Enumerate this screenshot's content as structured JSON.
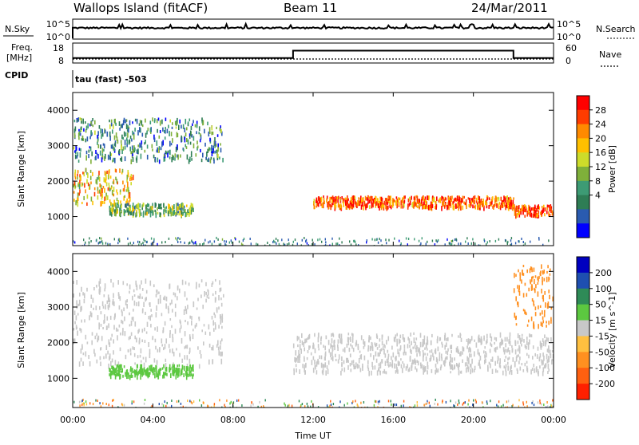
{
  "header": {
    "station": "Wallops Island (fitACF)",
    "beam": "Beam 11",
    "date": "24/Mar/2011"
  },
  "panels": {
    "nsky_label": "N.Sky",
    "nsearch_label": "N.Search",
    "freq_label_line1": "Freq.",
    "freq_label_line2": "[MHz]",
    "nave_label": "Nave",
    "cpid_label": "CPID",
    "cpid_text": "tau (fast) -503",
    "nsky_ticks": [
      "10^5",
      "10^0"
    ],
    "freq_ticks": [
      "18",
      "8"
    ],
    "nave_ticks": [
      "60",
      "0"
    ]
  },
  "chart_data": [
    {
      "type": "line",
      "name": "noise",
      "x_range_hours": [
        0,
        24
      ],
      "yscale": "log",
      "y_ticks": [
        "10^5",
        "10^0"
      ],
      "sky_level_approx": "~10^3 (roughly flat with spikes)"
    },
    {
      "type": "line",
      "name": "frequency_and_nave",
      "x": [
        0,
        11,
        11,
        22,
        22,
        24
      ],
      "freq_mhz": [
        10.5,
        10.5,
        14.2,
        14.2,
        10.5,
        10.5
      ],
      "freq_ylim": [
        8,
        18
      ],
      "nave_ylim": [
        0,
        60
      ]
    },
    {
      "type": "heatmap",
      "name": "power",
      "xlabel": "Time UT",
      "ylabel": "Slant Range [km]",
      "xlim_hours": [
        0,
        24
      ],
      "ylim_km": [
        180,
        4500
      ],
      "x_ticks": [
        "00:00",
        "04:00",
        "08:00",
        "12:00",
        "16:00",
        "20:00",
        "00:00"
      ],
      "y_ticks": [
        1000,
        2000,
        3000,
        4000
      ],
      "colorbar": {
        "label": "Power [dB]",
        "ticks": [
          "28",
          "24",
          "20",
          "16",
          "12",
          "8",
          "4"
        ],
        "colors": [
          "#ff0000",
          "#ff3c00",
          "#ff8a00",
          "#ffc000",
          "#cddc2a",
          "#7fb03a",
          "#3d9b74",
          "#2e7d55",
          "#2a5bb0",
          "#0000ff"
        ]
      },
      "features": [
        {
          "desc": "main band",
          "time_hours": [
            0,
            3
          ],
          "range_km": [
            1400,
            2400
          ],
          "power_db": 20
        },
        {
          "desc": "main band",
          "time_hours": [
            12,
            22
          ],
          "range_km": [
            1300,
            1600
          ],
          "power_db": 26
        },
        {
          "desc": "main band",
          "time_hours": [
            22,
            24
          ],
          "range_km": [
            1050,
            1350
          ],
          "power_db": 28
        },
        {
          "desc": "sub band",
          "time_hours": [
            1.8,
            6
          ],
          "range_km": [
            1100,
            1400
          ],
          "power_db": 14
        },
        {
          "desc": "far range",
          "time_hours": [
            0,
            7.5
          ],
          "range_km": [
            2600,
            3800
          ],
          "power_db": 10
        }
      ]
    },
    {
      "type": "heatmap",
      "name": "velocity",
      "xlabel": "Time UT",
      "ylabel": "Slant Range [km]",
      "xlim_hours": [
        0,
        24
      ],
      "ylim_km": [
        180,
        4500
      ],
      "x_ticks": [
        "00:00",
        "04:00",
        "08:00",
        "12:00",
        "16:00",
        "20:00",
        "00:00"
      ],
      "y_ticks": [
        1000,
        2000,
        3000,
        4000
      ],
      "colorbar": {
        "label": "Velocity [m s^-1]",
        "ticks": [
          "200",
          "100",
          "50",
          "15",
          "-15",
          "-50",
          "-100",
          "-200"
        ],
        "colors": [
          "#0000c0",
          "#1e4fb0",
          "#2e8b57",
          "#5cc840",
          "#c8c8c8",
          "#ffc040",
          "#ff9020",
          "#ff6010",
          "#ff2000"
        ]
      },
      "features": [
        {
          "desc": "ground scatter",
          "time_hours": [
            0,
            7.5
          ],
          "range_km": [
            1400,
            3800
          ],
          "velocity": 0
        },
        {
          "desc": "ground scatter",
          "time_hours": [
            11,
            24
          ],
          "range_km": [
            1200,
            2300
          ],
          "velocity": 0
        },
        {
          "desc": "ionospheric",
          "time_hours": [
            1.8,
            6
          ],
          "range_km": [
            1100,
            1400
          ],
          "velocity": 40
        },
        {
          "desc": "ionospheric",
          "time_hours": [
            22,
            24
          ],
          "range_km": [
            2500,
            4200
          ],
          "velocity": -60
        }
      ]
    }
  ]
}
